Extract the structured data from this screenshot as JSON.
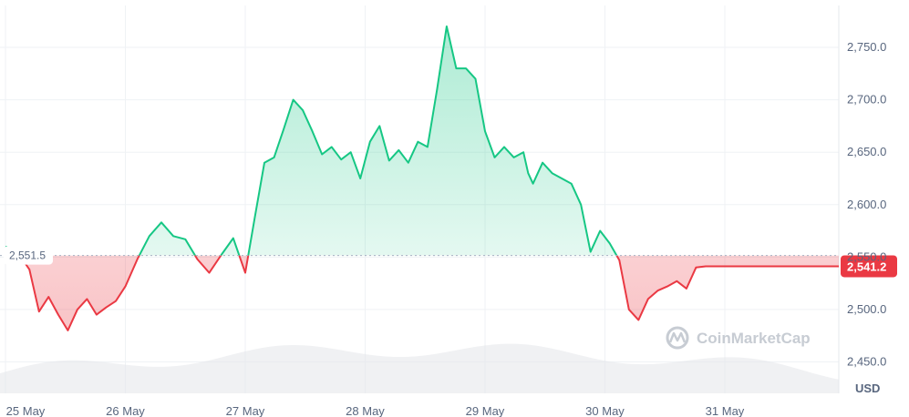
{
  "chart_data": {
    "type": "line",
    "title": "",
    "xlabel": "",
    "ylabel": "",
    "unit": "USD",
    "watermark": "CoinMarketCap",
    "reference_value": 2551.5,
    "reference_label": "2,551.5",
    "current_value": 2541.2,
    "current_label": "2,541.2",
    "ylim": [
      2420,
      2790
    ],
    "y_ticks": [
      2450,
      2500,
      2550,
      2600,
      2650,
      2700,
      2750
    ],
    "y_tick_labels": [
      "2,450.0",
      "2,500.0",
      "2,550.0",
      "2,600.0",
      "2,650.0",
      "2,700.0",
      "2,750.0"
    ],
    "x_tick_labels": [
      "25 May",
      "26 May",
      "27 May",
      "28 May",
      "29 May",
      "30 May",
      "31 May"
    ],
    "x_tick_days": [
      0,
      1,
      2,
      3,
      4,
      5,
      6
    ],
    "xlim_days": [
      0,
      7.0
    ],
    "colors": {
      "up": "#16c784",
      "down": "#ea3943",
      "grid": "#eff2f5",
      "volume": "#e3e6ea"
    },
    "series": [
      {
        "x_days": [
          0,
          0.1,
          0.2,
          0.28,
          0.36,
          0.44,
          0.52,
          0.6,
          0.68,
          0.76,
          0.84,
          0.92,
          1.0,
          1.1,
          1.2,
          1.3,
          1.4,
          1.5,
          1.6,
          1.7,
          1.8,
          1.9,
          2.0,
          2.08,
          2.16,
          2.24,
          2.32,
          2.4,
          2.48,
          2.56,
          2.64,
          2.72,
          2.8,
          2.88,
          2.96,
          3.04,
          3.12,
          3.2,
          3.28,
          3.36,
          3.44,
          3.52,
          3.6,
          3.68,
          3.76,
          3.84,
          3.92,
          4.0,
          4.08,
          4.16,
          4.24,
          4.32,
          4.36,
          4.4,
          4.48,
          4.56,
          4.64,
          4.72,
          4.8,
          4.88,
          4.96,
          5.04,
          5.12,
          5.2,
          5.28,
          5.36,
          5.44,
          5.52,
          5.6,
          5.68,
          5.76,
          5.84,
          5.92,
          6.0,
          6.08,
          6.16,
          6.24,
          6.32,
          6.4,
          6.48,
          6.56,
          6.64,
          6.72,
          6.8,
          6.88,
          6.96,
          7.0
        ],
        "y": [
          2560,
          2555,
          2538,
          2498,
          2512,
          2495,
          2480,
          2500,
          2510,
          2495,
          2502,
          2508,
          2522,
          2548,
          2570,
          2583,
          2570,
          2567,
          2548,
          2535,
          2552,
          2568,
          2535,
          2588,
          2640,
          2645,
          2672,
          2700,
          2690,
          2670,
          2648,
          2655,
          2643,
          2650,
          2625,
          2660,
          2675,
          2642,
          2652,
          2640,
          2660,
          2655,
          2710,
          2770,
          2730,
          2730,
          2720,
          2670,
          2645,
          2655,
          2645,
          2650,
          2630,
          2620,
          2640,
          2630,
          2625,
          2620,
          2600,
          2555,
          2575,
          2563,
          2547,
          2500,
          2490,
          2510,
          2518,
          2522,
          2527,
          2520,
          2540,
          2541.2,
          2541.2,
          2541.2,
          2541.2,
          2541.2,
          2541.2,
          2541.2,
          2541.2,
          2541.2,
          2541.2,
          2541.2,
          2541.2,
          2541.2,
          2541.2,
          2541.2,
          2541.2
        ]
      }
    ]
  }
}
